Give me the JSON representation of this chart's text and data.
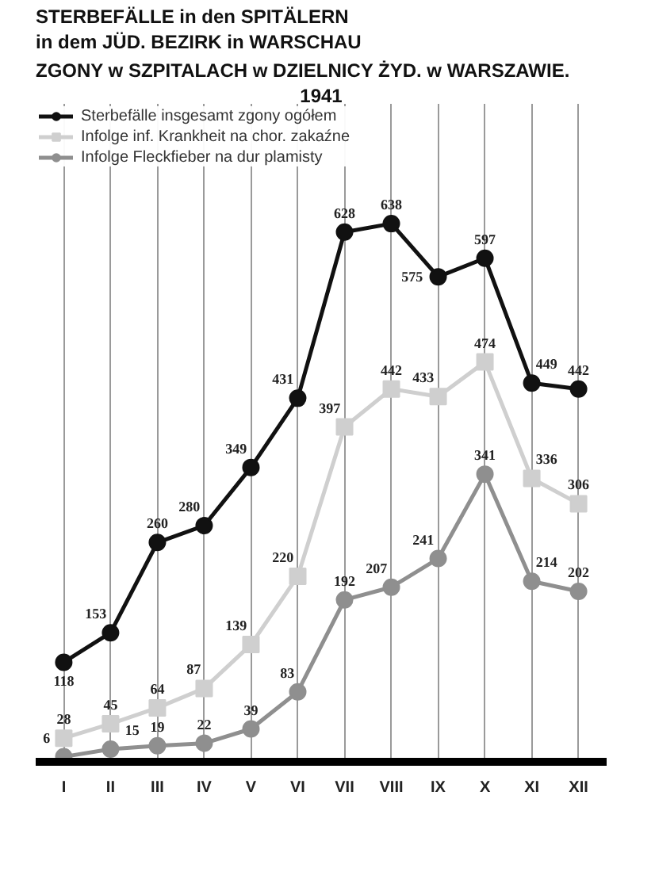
{
  "chart_data": {
    "type": "line",
    "title": "STERBEFÄLLE in den SPITÄLERN\nin dem JÜD. BEZIRK in WARSCHAU",
    "subtitle": "ZGONY w SZPITALACH w DZIELNICY ŻYD. w WARSZAWIE.",
    "annotations": [
      "1941"
    ],
    "categories": [
      "I",
      "II",
      "III",
      "IV",
      "V",
      "VI",
      "VII",
      "VIII",
      "IX",
      "X",
      "XI",
      "XII"
    ],
    "series": [
      {
        "name": "Sterbefälle insgesamt zgony ogółem",
        "color": "#111111",
        "marker": "circle",
        "values": [
          118,
          153,
          260,
          280,
          349,
          431,
          628,
          638,
          575,
          597,
          449,
          442
        ]
      },
      {
        "name": "Infolge inf. Krankheit na chor. zakaźne",
        "color": "#cfcfcf",
        "marker": "square",
        "values": [
          28,
          45,
          64,
          87,
          139,
          220,
          397,
          442,
          433,
          474,
          336,
          306
        ]
      },
      {
        "name": "Infolge Fleckfieber na dur plamisty",
        "color": "#8f8f8f",
        "marker": "circle",
        "values": [
          6,
          15,
          19,
          22,
          39,
          83,
          192,
          207,
          241,
          341,
          214,
          202
        ]
      }
    ],
    "ylim": [
      0,
      780
    ],
    "tick_labels": "x",
    "grid": "x",
    "legend": "top left",
    "data_labels": true,
    "line_style": "solid"
  }
}
